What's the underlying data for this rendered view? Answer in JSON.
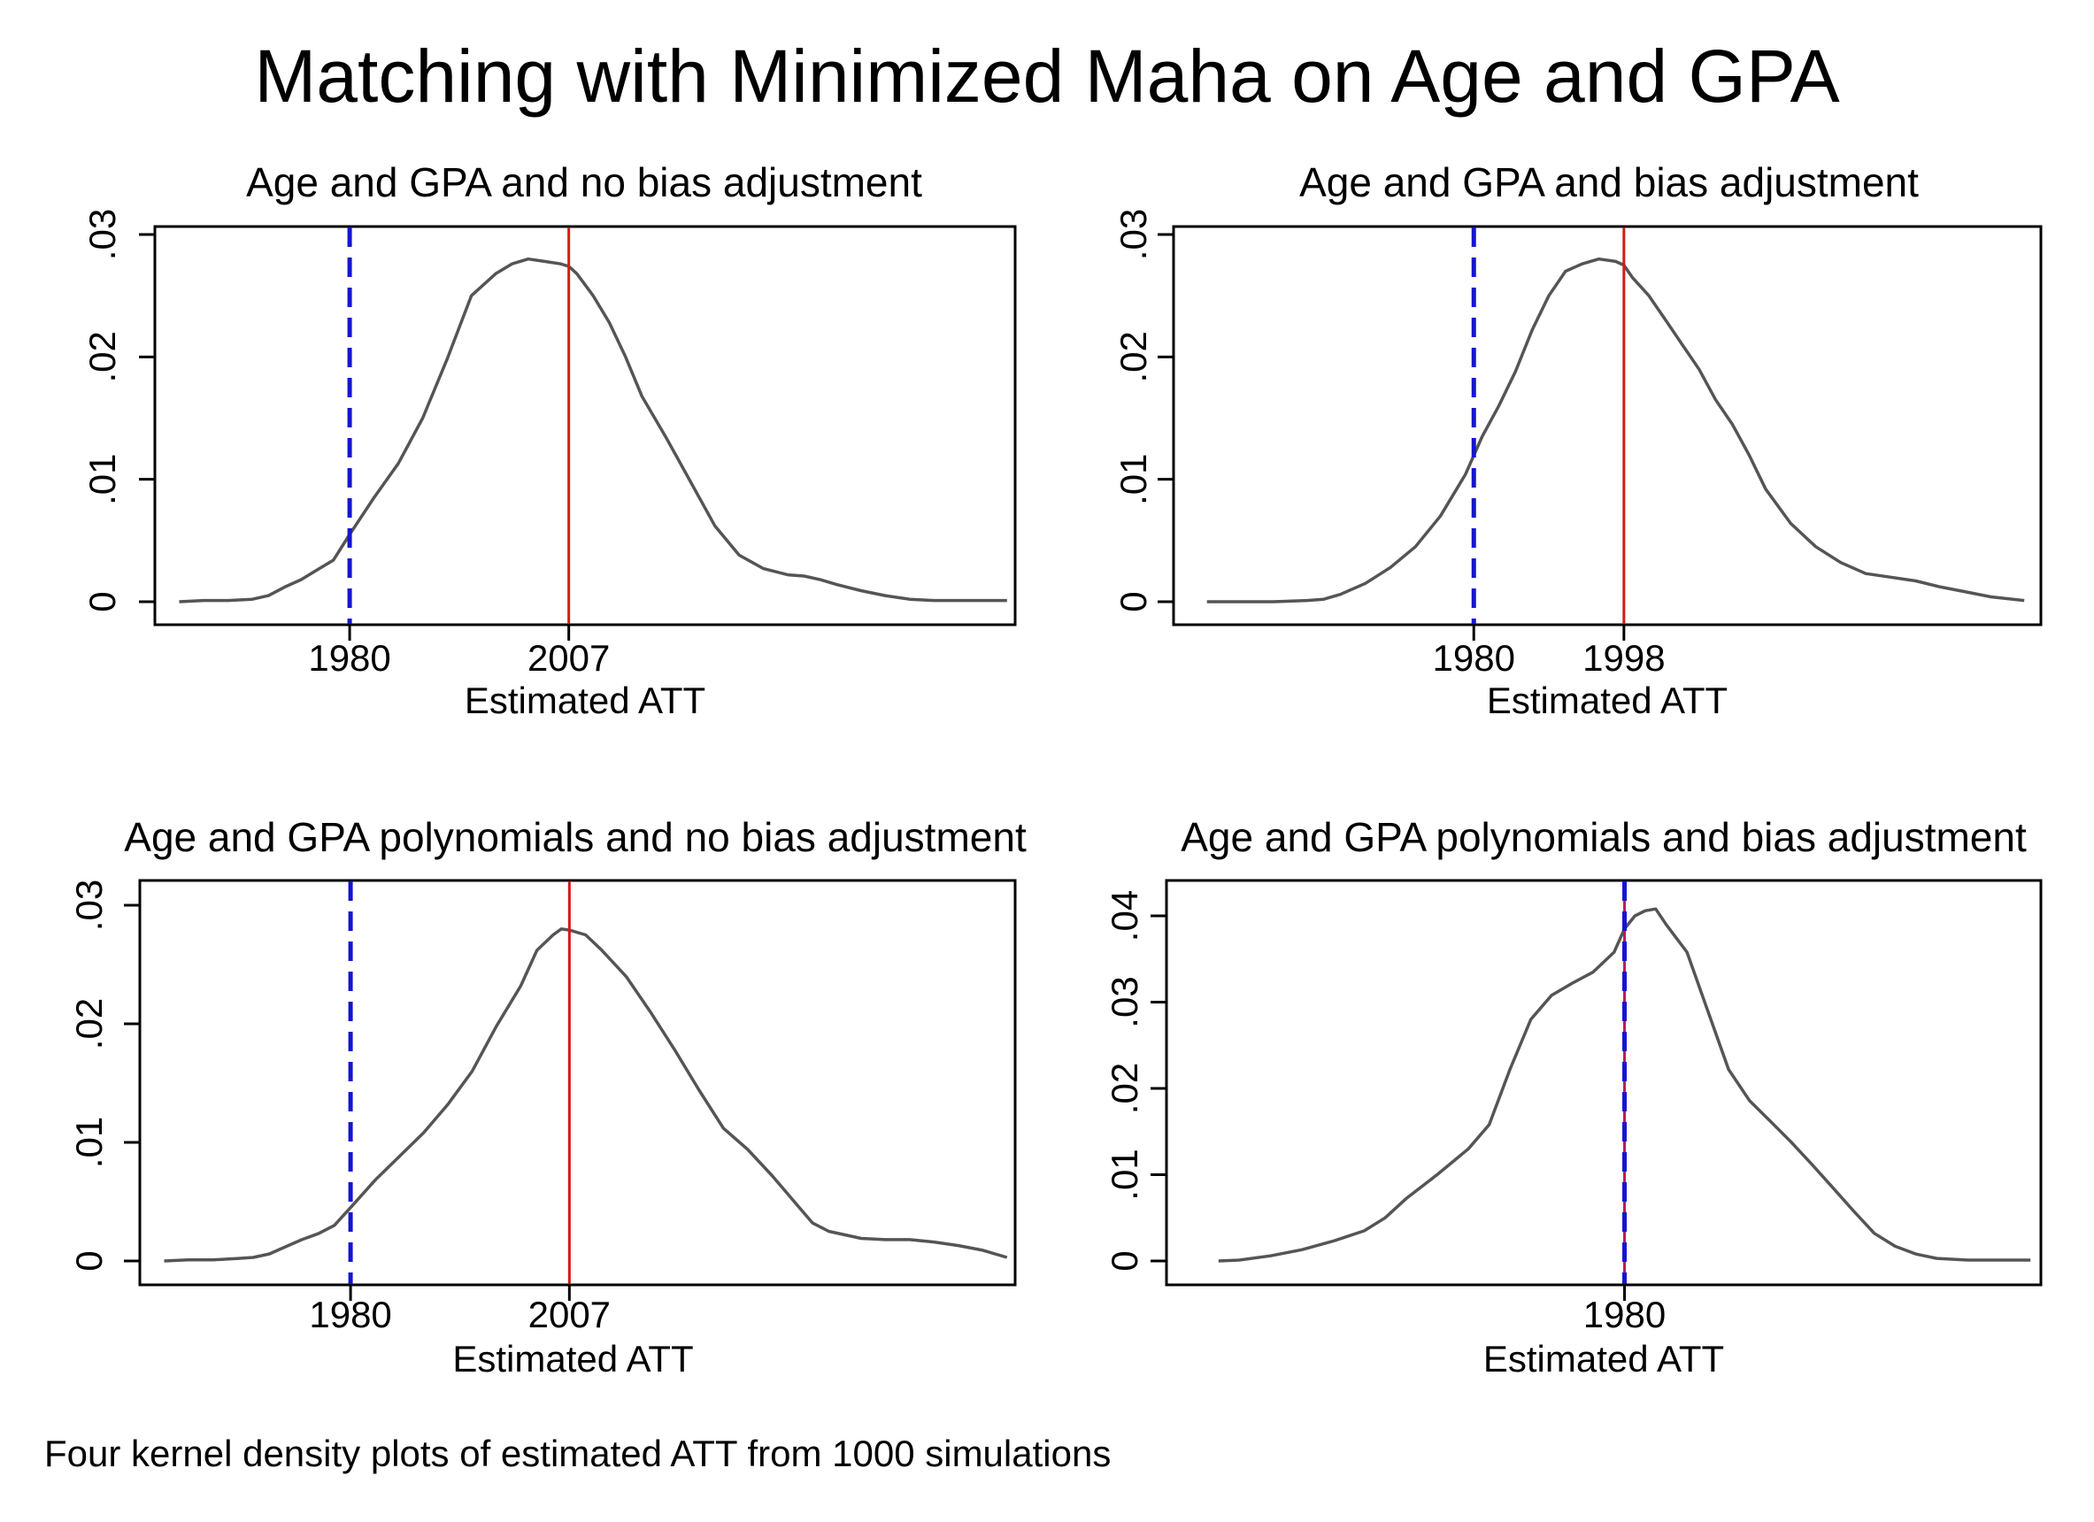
{
  "figure": {
    "title": "Matching with Minimized Maha on Age and GPA",
    "note": "Four kernel density plots of estimated ATT from 1000 simulations"
  },
  "chart_data": [
    {
      "type": "line",
      "title": "Age and GPA and no bias adjustment",
      "xlabel": "Estimated ATT",
      "ylabel": "",
      "xlim": [
        1956,
        2062
      ],
      "ylim": [
        0,
        0.03
      ],
      "yticks": [
        0,
        0.01,
        0.02,
        0.03
      ],
      "ytick_labels": [
        "0",
        ".01",
        ".02",
        ".03"
      ],
      "xticks": [
        1980,
        2007
      ],
      "xtick_labels": [
        "1980",
        "2007"
      ],
      "grid": false,
      "reference_lines": [
        {
          "x": 1980,
          "style": "dashed",
          "color": "#1414d2"
        },
        {
          "x": 2007,
          "style": "solid",
          "color": "#d41a1a"
        }
      ],
      "series": [
        {
          "color": "#555555",
          "x": [
            1959,
            1962,
            1965,
            1968,
            1970,
            1972,
            1974,
            1976,
            1978,
            1980,
            1983,
            1986,
            1989,
            1992,
            1995,
            1998,
            2000,
            2002,
            2004,
            2006,
            2007,
            2008,
            2010,
            2012,
            2014,
            2016,
            2019,
            2022,
            2025,
            2028,
            2031,
            2034,
            2036,
            2038,
            2040,
            2043,
            2046,
            2049,
            2052,
            2055,
            2057,
            2059,
            2061
          ],
          "y": [
            0,
            0.0001,
            0.0001,
            0.0002,
            0.0005,
            0.0012,
            0.0018,
            0.0026,
            0.0034,
            0.0055,
            0.0085,
            0.0113,
            0.015,
            0.0198,
            0.025,
            0.0268,
            0.0276,
            0.028,
            0.0278,
            0.0276,
            0.0274,
            0.0268,
            0.025,
            0.0228,
            0.02,
            0.0168,
            0.0134,
            0.0098,
            0.0062,
            0.0038,
            0.0027,
            0.0022,
            0.0021,
            0.0018,
            0.0014,
            0.0009,
            0.0005,
            0.0002,
            0.0001,
            0.0001,
            0.0001,
            0.0001,
            0.0001
          ]
        }
      ]
    },
    {
      "type": "line",
      "title": "Age and GPA and bias adjustment",
      "xlabel": "Estimated ATT",
      "ylabel": "",
      "xlim": [
        1944,
        2048
      ],
      "ylim": [
        0,
        0.03
      ],
      "yticks": [
        0,
        0.01,
        0.02,
        0.03
      ],
      "ytick_labels": [
        "0",
        ".01",
        ".02",
        ".03"
      ],
      "xticks": [
        1980,
        1998
      ],
      "xtick_labels": [
        "1980",
        "1998"
      ],
      "grid": false,
      "reference_lines": [
        {
          "x": 1980,
          "style": "dashed",
          "color": "#1414d2"
        },
        {
          "x": 1998,
          "style": "solid",
          "color": "#d41a1a"
        }
      ],
      "series": [
        {
          "color": "#555555",
          "x": [
            1948,
            1952,
            1956,
            1960,
            1962,
            1964,
            1967,
            1970,
            1973,
            1976,
            1979,
            1981,
            1983,
            1985,
            1987,
            1989,
            1991,
            1993,
            1995,
            1997,
            1998,
            1999,
            2001,
            2003,
            2005,
            2007,
            2009,
            2011,
            2013,
            2015,
            2018,
            2021,
            2024,
            2027,
            2030,
            2033,
            2036,
            2039,
            2042,
            2046
          ],
          "y": [
            0,
            0,
            0,
            0.0001,
            0.0002,
            0.0006,
            0.0015,
            0.0028,
            0.0045,
            0.007,
            0.0104,
            0.0135,
            0.016,
            0.0188,
            0.0222,
            0.025,
            0.027,
            0.0276,
            0.028,
            0.0278,
            0.0275,
            0.0265,
            0.025,
            0.023,
            0.021,
            0.019,
            0.0165,
            0.0145,
            0.012,
            0.0092,
            0.0064,
            0.0045,
            0.0032,
            0.0023,
            0.002,
            0.0017,
            0.0012,
            0.0008,
            0.0004,
            0.0001
          ]
        }
      ]
    },
    {
      "type": "line",
      "title": "Age and GPA polynomials and no bias adjustment",
      "xlabel": "Estimated ATT",
      "ylabel": "",
      "xlim": [
        1954,
        2062
      ],
      "ylim": [
        0,
        0.03
      ],
      "yticks": [
        0,
        0.01,
        0.02,
        0.03
      ],
      "ytick_labels": [
        "0",
        ".01",
        ".02",
        ".03"
      ],
      "xticks": [
        1980,
        2007
      ],
      "xtick_labels": [
        "1980",
        "2007"
      ],
      "grid": false,
      "reference_lines": [
        {
          "x": 1980,
          "style": "dashed",
          "color": "#1414d2"
        },
        {
          "x": 2007,
          "style": "solid",
          "color": "#d41a1a"
        }
      ],
      "series": [
        {
          "color": "#555555",
          "x": [
            1957,
            1960,
            1963,
            1966,
            1968,
            1970,
            1972,
            1974,
            1976,
            1978,
            1980,
            1983,
            1986,
            1989,
            1992,
            1995,
            1998,
            2001,
            2003,
            2005,
            2006,
            2007,
            2009,
            2011,
            2014,
            2017,
            2020,
            2023,
            2026,
            2029,
            2032,
            2035,
            2037,
            2039,
            2041,
            2043,
            2046,
            2049,
            2052,
            2055,
            2058,
            2061
          ],
          "y": [
            0,
            0.0001,
            0.0001,
            0.0002,
            0.0003,
            0.0006,
            0.0012,
            0.0018,
            0.0023,
            0.003,
            0.0045,
            0.0068,
            0.0088,
            0.0108,
            0.0132,
            0.016,
            0.0198,
            0.0232,
            0.0262,
            0.0275,
            0.028,
            0.0279,
            0.0275,
            0.0262,
            0.024,
            0.021,
            0.0178,
            0.0144,
            0.0112,
            0.0094,
            0.0072,
            0.0048,
            0.0032,
            0.0025,
            0.0022,
            0.0019,
            0.0018,
            0.0018,
            0.0016,
            0.0013,
            0.0009,
            0.0003
          ]
        }
      ]
    },
    {
      "type": "line",
      "title": "Age and GPA polynomials and bias adjustment",
      "xlabel": "Estimated ATT",
      "ylabel": "",
      "xlim": [
        1936,
        2020
      ],
      "ylim": [
        0,
        0.044
      ],
      "yticks": [
        0,
        0.01,
        0.02,
        0.03,
        0.04
      ],
      "ytick_labels": [
        "0",
        ".01",
        ".02",
        ".03",
        ".04"
      ],
      "xticks": [
        1980
      ],
      "xtick_labels": [
        "1980"
      ],
      "grid": false,
      "reference_lines": [
        {
          "x": 1980,
          "style": "dashed",
          "color": "#1414d2"
        },
        {
          "x": 1980,
          "style": "solid",
          "color": "#d41a1a"
        }
      ],
      "series": [
        {
          "color": "#555555",
          "x": [
            1941,
            1943,
            1946,
            1949,
            1952,
            1955,
            1957,
            1959,
            1962,
            1965,
            1967,
            1969,
            1971,
            1973,
            1975,
            1977,
            1979,
            1980,
            1981,
            1982,
            1983,
            1984,
            1986,
            1988,
            1990,
            1992,
            1994,
            1996,
            1998,
            2000,
            2002,
            2004,
            2006,
            2008,
            2010,
            2013,
            2016,
            2019
          ],
          "y": [
            0,
            0.0001,
            0.0006,
            0.0013,
            0.0023,
            0.0035,
            0.005,
            0.0072,
            0.01,
            0.013,
            0.0158,
            0.0222,
            0.028,
            0.0308,
            0.0322,
            0.0335,
            0.0358,
            0.0385,
            0.04,
            0.0406,
            0.0408,
            0.039,
            0.0358,
            0.029,
            0.0222,
            0.0186,
            0.0162,
            0.0138,
            0.0112,
            0.0085,
            0.0058,
            0.0032,
            0.0017,
            0.0008,
            0.0003,
            0.0001,
            0.0001,
            0.0001
          ]
        }
      ]
    }
  ]
}
